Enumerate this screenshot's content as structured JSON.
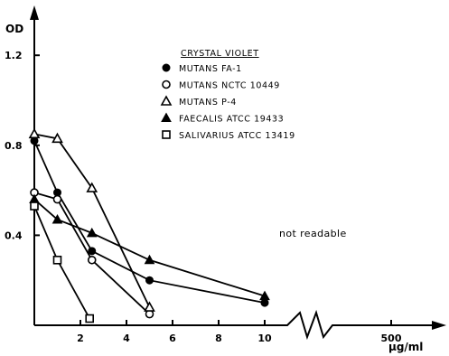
{
  "chart_data": {
    "type": "line",
    "title": "",
    "xlabel": "μg/ml",
    "ylabel": "OD",
    "xlim": [
      0,
      10.5
    ],
    "ylim": [
      0,
      1.2
    ],
    "x_ticks": [
      2,
      4,
      6,
      8,
      10
    ],
    "x_tick_labels": [
      "2",
      "4",
      "6",
      "8",
      "10"
    ],
    "x_break_tick": {
      "value": 500,
      "label": "500"
    },
    "y_ticks": [
      0.4,
      0.8,
      1.2
    ],
    "y_tick_labels": [
      "0.4",
      "0.8",
      "1.2"
    ],
    "legend_title": "CRYSTAL VIOLET",
    "legend_position": "top-center",
    "annotation": "not readable",
    "grid": false,
    "series": [
      {
        "name": "MUTANS FA-1",
        "marker": "filled-circle",
        "x": [
          0,
          1,
          2.5,
          5,
          10
        ],
        "y": [
          0.82,
          0.59,
          0.33,
          0.2,
          0.1
        ]
      },
      {
        "name": "MUTANS NCTC 10449",
        "marker": "open-circle",
        "x": [
          0,
          1,
          2.5,
          5
        ],
        "y": [
          0.59,
          0.56,
          0.29,
          0.05
        ]
      },
      {
        "name": "MUTANS P-4",
        "marker": "open-triangle",
        "x": [
          0,
          1,
          2.5,
          5
        ],
        "y": [
          0.85,
          0.83,
          0.61,
          0.08
        ]
      },
      {
        "name": "FAECALIS ATCC 19433",
        "marker": "filled-triangle",
        "x": [
          0,
          1,
          2.5,
          5,
          10
        ],
        "y": [
          0.56,
          0.47,
          0.41,
          0.29,
          0.13
        ]
      },
      {
        "name": "SALIVARIUS ATCC 13419",
        "marker": "open-square",
        "x": [
          0,
          1,
          2.4
        ],
        "y": [
          0.53,
          0.29,
          0.03
        ]
      }
    ]
  }
}
